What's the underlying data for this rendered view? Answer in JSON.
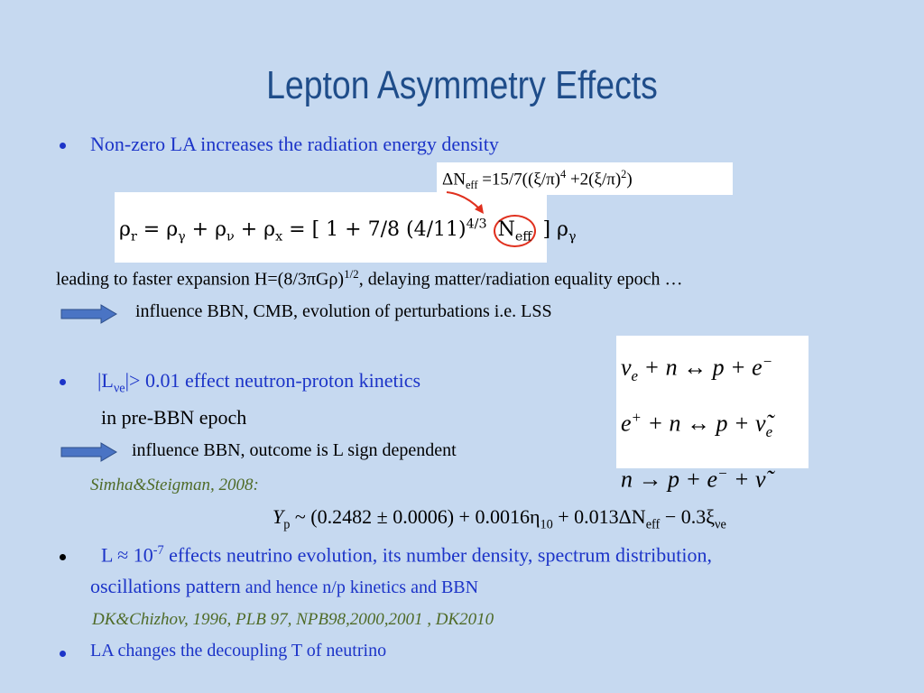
{
  "title": "Lepton Asymmetry Effects",
  "bullet_1": "Non-zero LA increases the radiation energy density",
  "neff_formula": [
    "ΔN",
    "eff",
    " =15/7((ξ/π)",
    "4",
    " +2(ξ/π)",
    "2",
    ")"
  ],
  "rho_formula": [
    "ρ",
    "r",
    " = ρ",
    "γ",
    " + ρ",
    "ν",
    " + ρ",
    "x",
    " = ",
    "[ 1 + ",
    "7/8",
    " (4/11)",
    "4/3",
    "N",
    "eff",
    " ] ρ",
    "γ"
  ],
  "expansion": [
    "leading to faster expansion H=(8/3πGρ)",
    "1/2",
    ", delaying matter/radiation equality epoch …"
  ],
  "consequence_1": "influence BBN, CMB, evolution of perturbations i.e. LSS",
  "reactions": [
    [
      "ν",
      "e",
      " + n ↔ p + e",
      "−"
    ],
    [
      "e",
      "+",
      " + n ↔ p + ν̃",
      "e"
    ],
    [
      "n → p + e",
      "−",
      " + ν̃"
    ]
  ],
  "bullet_2": [
    "|L",
    "νe",
    "|> 0.01 effect neutron-proton kinetics"
  ],
  "bullet_2_cont": "in pre-BBN epoch",
  "consequence_2": "influence BBN, outcome  is L sign dependent",
  "reference_1": "Simha&Steigman, 2008:",
  "yp_formula": [
    "Y",
    "p",
    "  ~ (0.2482 ± 0.0006) + 0.0016η",
    "10",
    " + 0.013ΔN",
    "eff",
    "  − 0.3ξ",
    "νe"
  ],
  "bullet_3": [
    "L ≈ 10",
    "-7",
    "  effects neutrino evolution, its number density, spectrum distribution,"
  ],
  "bullet_3_cont": [
    "oscillations pattern",
    " and hence  n/p kinetics and BBN"
  ],
  "reference_2": "DK&Chizhov, 1996, PLB 97, NPB98,2000,2001 , DK2010",
  "bullet_4": "LA changes the decoupling T of neutrino"
}
